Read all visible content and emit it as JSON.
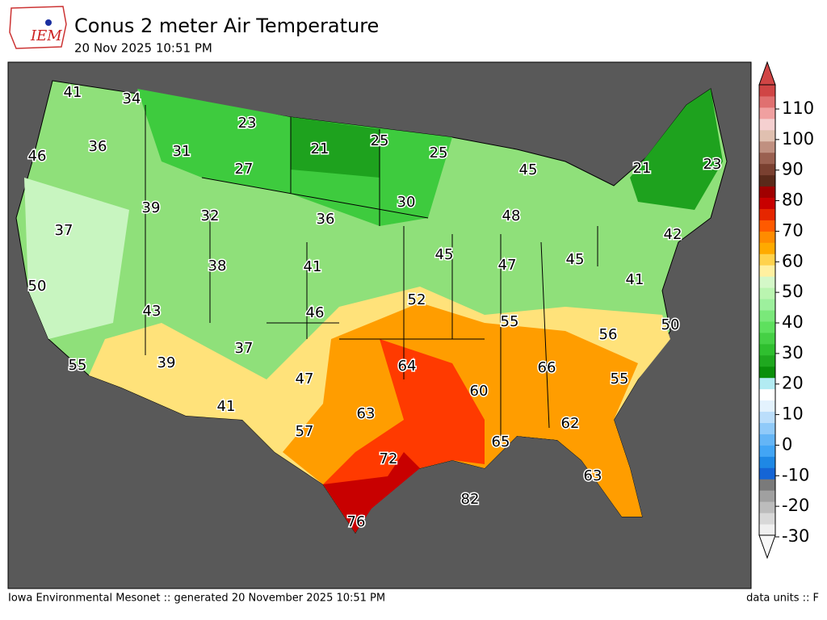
{
  "header": {
    "logo": "IEM",
    "title": "Conus 2 meter Air Temperature",
    "subtitle": "20 Nov 2025 10:51 PM"
  },
  "colorbar": {
    "ticks": [
      -30,
      -20,
      -10,
      0,
      10,
      20,
      30,
      40,
      50,
      60,
      70,
      80,
      90,
      100,
      110
    ]
  },
  "map": {
    "values": [
      41,
      34,
      23,
      21,
      25,
      25,
      45,
      21,
      23,
      46,
      36,
      31,
      27,
      39,
      32,
      36,
      30,
      48,
      42,
      37,
      38,
      41,
      45,
      47,
      45,
      41,
      50,
      43,
      46,
      52,
      55,
      56,
      50,
      55,
      39,
      37,
      64,
      66,
      55,
      47,
      60,
      41,
      63,
      62,
      57,
      65,
      72,
      63,
      82,
      76
    ]
  },
  "footer": {
    "left": "Iowa Environmental Mesonet :: generated 20 November 2025 10:51 PM",
    "right": "data units :: F"
  }
}
